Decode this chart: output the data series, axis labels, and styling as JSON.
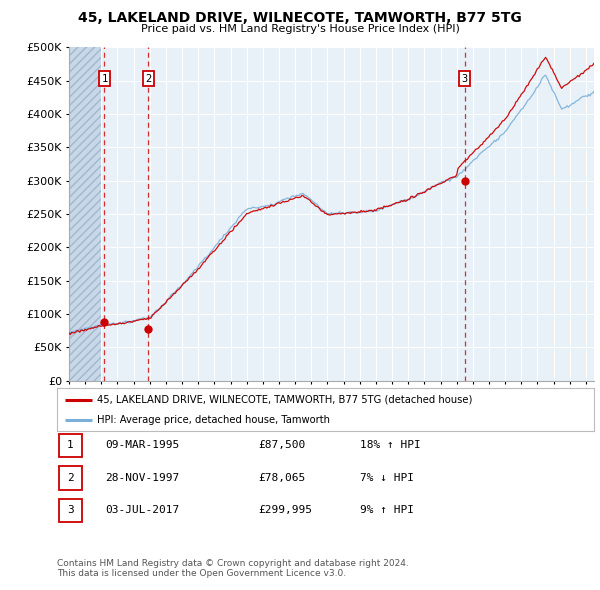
{
  "title": "45, LAKELAND DRIVE, WILNECOTE, TAMWORTH, B77 5TG",
  "subtitle": "Price paid vs. HM Land Registry's House Price Index (HPI)",
  "sales": [
    {
      "date_num": 1995.19,
      "price": 87500,
      "label": "1"
    },
    {
      "date_num": 1997.91,
      "price": 78065,
      "label": "2"
    },
    {
      "date_num": 2017.5,
      "price": 299995,
      "label": "3"
    }
  ],
  "hpi_line_color": "#7ab0d8",
  "sale_line_color": "#cc0000",
  "vline_color": "#cc0000",
  "bg_color": "#e8f0f8",
  "hatch_color": "#c8d8e8",
  "grid_color": "#ffffff",
  "legend_entries": [
    "45, LAKELAND DRIVE, WILNECOTE, TAMWORTH, B77 5TG (detached house)",
    "HPI: Average price, detached house, Tamworth"
  ],
  "table_rows": [
    {
      "num": "1",
      "date": "09-MAR-1995",
      "price": "£87,500",
      "hpi": "18% ↑ HPI"
    },
    {
      "num": "2",
      "date": "28-NOV-1997",
      "price": "£78,065",
      "hpi": "7% ↓ HPI"
    },
    {
      "num": "3",
      "date": "03-JUL-2017",
      "price": "£299,995",
      "hpi": "9% ↑ HPI"
    }
  ],
  "footer": "Contains HM Land Registry data © Crown copyright and database right 2024.\nThis data is licensed under the Open Government Licence v3.0.",
  "ylim": [
    0,
    500000
  ],
  "yticks": [
    0,
    50000,
    100000,
    150000,
    200000,
    250000,
    300000,
    350000,
    400000,
    450000,
    500000
  ],
  "xlim_start": 1993.0,
  "xlim_end": 2025.5,
  "hatch_end": 1995.0
}
